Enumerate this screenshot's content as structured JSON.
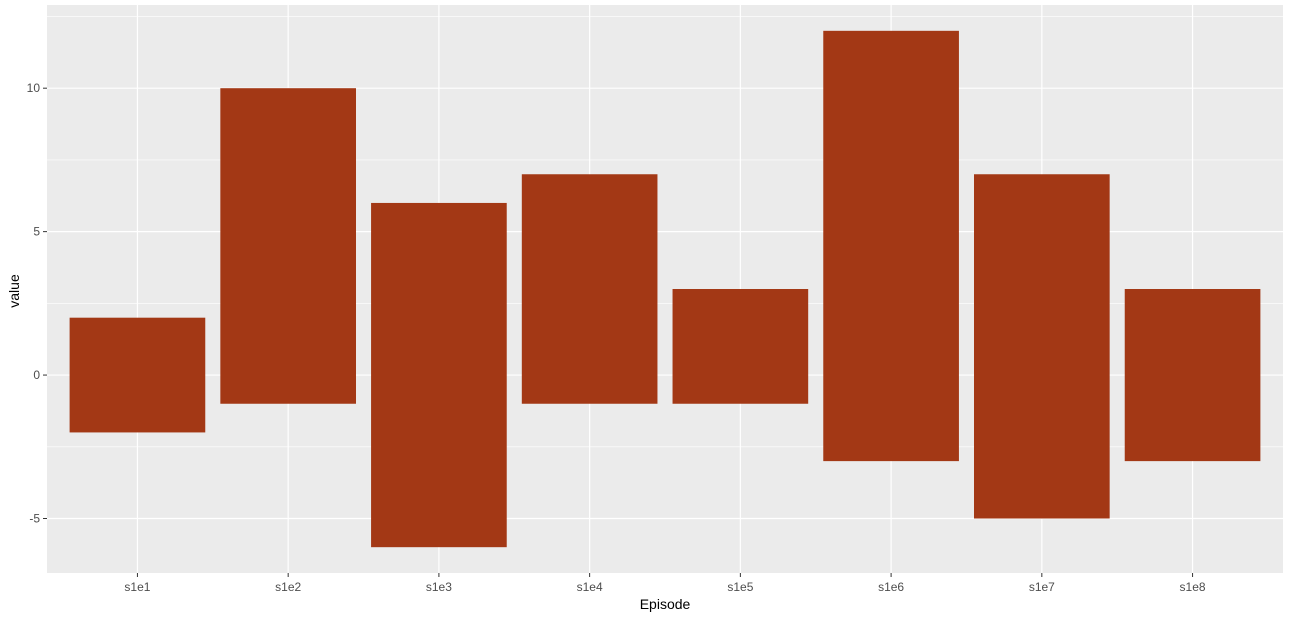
{
  "chart_data": {
    "type": "bar",
    "categories": [
      "s1e1",
      "s1e2",
      "s1e3",
      "s1e4",
      "s1e5",
      "s1e6",
      "s1e7",
      "s1e8"
    ],
    "bars": [
      {
        "ymin": -2,
        "ymax": 2
      },
      {
        "ymin": -1,
        "ymax": 10
      },
      {
        "ymin": -6,
        "ymax": 6
      },
      {
        "ymin": -1,
        "ymax": 7
      },
      {
        "ymin": -1,
        "ymax": 3
      },
      {
        "ymin": -3,
        "ymax": 12
      },
      {
        "ymin": -5,
        "ymax": 7
      },
      {
        "ymin": -3,
        "ymax": 3
      }
    ],
    "title": "",
    "xlabel": "Episode",
    "ylabel": "value",
    "ylim": [
      -6.9,
      12.9
    ],
    "yticks": [
      -5,
      0,
      5,
      10
    ],
    "ytick_labels": [
      "-5",
      "0",
      "5",
      "10"
    ],
    "grid": true,
    "legend": "none",
    "colors": {
      "bar": "#A33815",
      "panel": "#EBEBEB",
      "grid": "#FFFFFF"
    }
  }
}
